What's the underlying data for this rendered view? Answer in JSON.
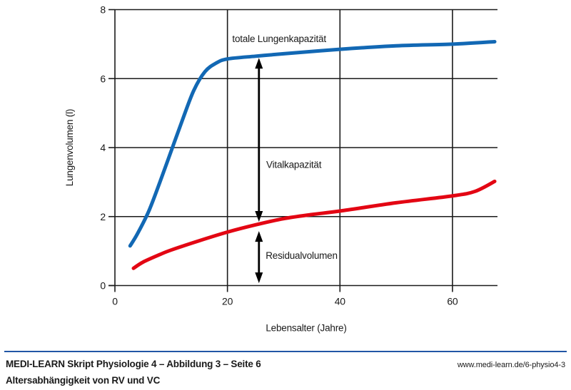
{
  "chart_data": {
    "type": "line",
    "title": "",
    "xlabel": "Lebensalter (Jahre)",
    "ylabel": "Lungenvolumen (l)",
    "xlim": [
      0,
      68
    ],
    "ylim": [
      0,
      8
    ],
    "xticks": [
      0,
      20,
      40,
      60
    ],
    "yticks": [
      0,
      2,
      4,
      6,
      8
    ],
    "grid": true,
    "axis_color": "#1a1a1a",
    "series": [
      {
        "name": "totale Lungenkapazität",
        "color": "#1268b4",
        "points": [
          [
            2.7,
            1.15
          ],
          [
            4,
            1.5
          ],
          [
            6,
            2.15
          ],
          [
            8,
            3.0
          ],
          [
            10,
            3.9
          ],
          [
            12,
            4.8
          ],
          [
            14,
            5.65
          ],
          [
            16,
            6.2
          ],
          [
            18,
            6.45
          ],
          [
            20,
            6.57
          ],
          [
            25,
            6.65
          ],
          [
            30,
            6.72
          ],
          [
            40,
            6.85
          ],
          [
            50,
            6.95
          ],
          [
            60,
            7.0
          ],
          [
            67.5,
            7.07
          ]
        ]
      },
      {
        "name": "Residualvolumen",
        "color": "#e30613",
        "points": [
          [
            3.3,
            0.5
          ],
          [
            5,
            0.68
          ],
          [
            8,
            0.9
          ],
          [
            10,
            1.03
          ],
          [
            15,
            1.3
          ],
          [
            20,
            1.55
          ],
          [
            25,
            1.76
          ],
          [
            30,
            1.94
          ],
          [
            35,
            2.06
          ],
          [
            40,
            2.16
          ],
          [
            50,
            2.4
          ],
          [
            60,
            2.6
          ],
          [
            64,
            2.73
          ],
          [
            67.5,
            3.02
          ]
        ]
      }
    ],
    "annotations": {
      "arrows": [
        {
          "name": "vitalkapazitaet-arrow",
          "x": 25.6,
          "y_top": 6.6,
          "y_bottom": 1.85
        },
        {
          "name": "residualvolumen-arrow",
          "x": 25.6,
          "y_top": 1.58,
          "y_bottom": 0.07
        }
      ],
      "labels": [
        {
          "name": "tlc-label",
          "text": "totale Lungenkapazität",
          "x": 29.2,
          "y": 7.15,
          "anchor": "middle"
        },
        {
          "name": "vc-label",
          "text": "Vitalkapazität",
          "x": 26.9,
          "y": 3.5,
          "anchor": "start"
        },
        {
          "name": "rv-label",
          "text": "Residualvolumen",
          "x": 26.8,
          "y": 0.87,
          "anchor": "start"
        }
      ]
    },
    "legend": "none"
  },
  "footer": {
    "line1": "MEDI-LEARN Skript Physiologie 4 – Abbildung 3 – Seite 6",
    "line2": "Altersabhängigkeit von RV und VC",
    "url": "www.medi-learn.de/6-physio4-3",
    "divider_color": "#2156a5"
  }
}
